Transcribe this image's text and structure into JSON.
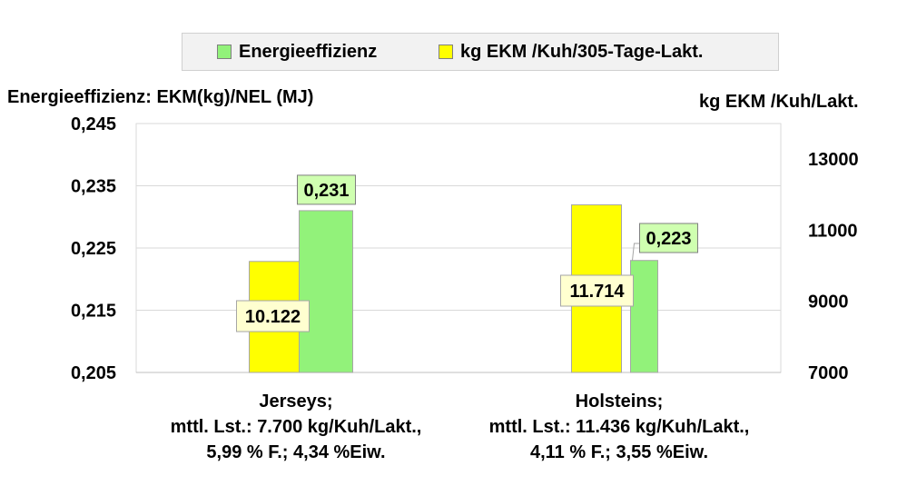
{
  "chart_data": {
    "type": "bar",
    "categories": [
      [
        "Jerseys;",
        "mttl. Lst.: 7.700 kg/Kuh/Lakt.,",
        "5,99 % F.; 4,34 %Eiw."
      ],
      [
        "Holsteins;",
        "mttl. Lst.: 11.436 kg/Kuh/Lakt.,",
        "4,11 % F.; 3,55 %Eiw."
      ]
    ],
    "ylabel": "Energieeffizienz: EKM(kg)/NEL (MJ)",
    "y2label": "kg EKM /Kuh/Lakt.",
    "ylim": [
      0.205,
      0.245
    ],
    "y2lim": [
      7000,
      14000
    ],
    "yticks": [
      "0,205",
      "0,215",
      "0,225",
      "0,235",
      "0,245"
    ],
    "y2ticks": [
      "7000",
      "9000",
      "11000",
      "13000"
    ],
    "grid": true,
    "legend_position": "top",
    "series": [
      {
        "name": "Energieeffizienz",
        "axis": "left",
        "color": "#92f27a",
        "values": [
          0.231,
          0.223
        ],
        "labels": [
          "0,231",
          "0,223"
        ],
        "label_bg": "#cfffb0"
      },
      {
        "name": "kg EKM /Kuh/305-Tage-Lakt.",
        "axis": "right",
        "color": "#ffff00",
        "values": [
          10122,
          11714
        ],
        "labels": [
          "10.122",
          "11.714"
        ],
        "label_bg": "#ffffd0"
      }
    ]
  }
}
